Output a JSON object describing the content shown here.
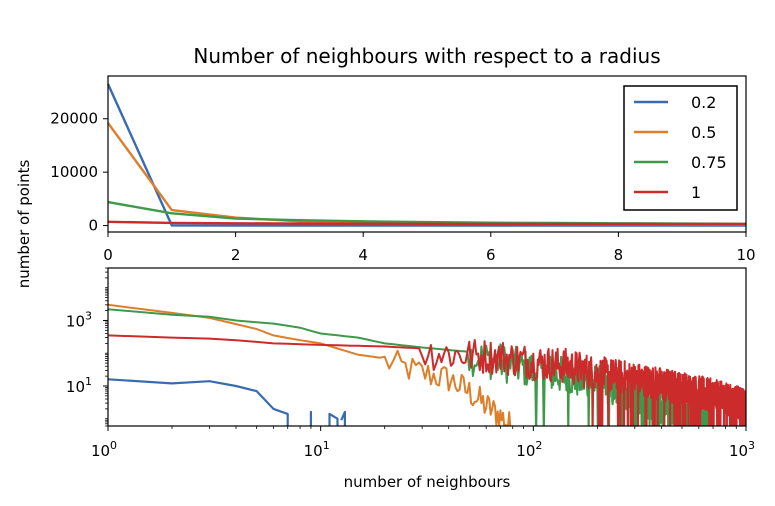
{
  "chart_data": [
    {
      "type": "line",
      "title": "Number of neighbours with respect to a radius",
      "xlabel": "",
      "ylabel": "number of points",
      "xlim": [
        0,
        10
      ],
      "ylim": [
        -1200,
        28000
      ],
      "xticks": [
        0,
        2,
        4,
        6,
        8,
        10
      ],
      "xtick_labels": [
        "0",
        "2",
        "4",
        "6",
        "8",
        "10"
      ],
      "yticks": [
        0,
        10000,
        20000
      ],
      "ytick_labels": [
        "0",
        "10000",
        "20000"
      ],
      "legend_position": "upper right",
      "x": [
        0,
        1,
        2,
        3,
        4,
        5,
        6,
        7,
        8,
        9,
        10
      ],
      "series": [
        {
          "name": "0.2",
          "color": "#3a6bb1",
          "values": [
            26500,
            40,
            15,
            8,
            5,
            4,
            3,
            2,
            2,
            1,
            1
          ]
        },
        {
          "name": "0.5",
          "color": "#dd7e2b",
          "values": [
            19200,
            2900,
            1500,
            800,
            600,
            450,
            350,
            300,
            250,
            220,
            200
          ]
        },
        {
          "name": "0.75",
          "color": "#3e9a4a",
          "values": [
            4400,
            2300,
            1300,
            1000,
            800,
            650,
            550,
            480,
            420,
            380,
            340
          ]
        },
        {
          "name": "1",
          "color": "#cc2b2b",
          "values": [
            700,
            500,
            420,
            380,
            350,
            330,
            320,
            310,
            300,
            295,
            290
          ]
        }
      ]
    },
    {
      "type": "line",
      "title": "",
      "xlabel": "number of neighbours",
      "ylabel": "",
      "xscale": "log",
      "yscale": "log",
      "xlim": [
        1,
        1000
      ],
      "ylim": [
        0.6,
        40000
      ],
      "xticks": [
        1,
        10,
        100,
        1000
      ],
      "xtick_labels": [
        {
          "base": "10",
          "exp": "0"
        },
        {
          "base": "10",
          "exp": "1"
        },
        {
          "base": "10",
          "exp": "2"
        },
        {
          "base": "10",
          "exp": "3"
        }
      ],
      "yticks": [
        10,
        1000
      ],
      "ytick_labels": [
        {
          "base": "10",
          "exp": "1"
        },
        {
          "base": "10",
          "exp": "3"
        }
      ],
      "series": [
        {
          "name": "0.2",
          "color": "#3a6bb1",
          "segments": [
            [
              [
                1,
                16
              ],
              [
                2,
                12
              ],
              [
                3,
                14
              ],
              [
                4,
                10
              ],
              [
                5,
                7
              ],
              [
                6,
                2
              ],
              [
                7,
                1.4
              ],
              [
                7,
                0.6
              ]
            ],
            [
              [
                9,
                0.6
              ],
              [
                9,
                1.6
              ],
              [
                9,
                0.6
              ]
            ],
            [
              [
                11,
                0.6
              ],
              [
                11,
                1.4
              ],
              [
                12,
                1
              ],
              [
                12,
                0.6
              ]
            ],
            [
              [
                13,
                0.6
              ],
              [
                13,
                1.6
              ],
              [
                12.5,
                0.9
              ]
            ]
          ]
        },
        {
          "name": "0.5",
          "color": "#dd7e2b",
          "anchors": [
            [
              1,
              3000
            ],
            [
              2,
              1700
            ],
            [
              3,
              1200
            ],
            [
              5,
              550
            ],
            [
              6,
              350
            ],
            [
              8,
              250
            ],
            [
              10,
              200
            ],
            [
              15,
              90
            ],
            [
              20,
              70
            ],
            [
              30,
              30
            ],
            [
              40,
              20
            ],
            [
              50,
              8
            ],
            [
              60,
              3
            ],
            [
              70,
              1.5
            ],
            [
              80,
              0.6
            ]
          ],
          "noise_start": 20,
          "noise_amp": 0.45,
          "end_x": 80
        },
        {
          "name": "0.75",
          "color": "#3e9a4a",
          "anchors": [
            [
              1,
              2200
            ],
            [
              2,
              1500
            ],
            [
              3,
              1300
            ],
            [
              4,
              1000
            ],
            [
              6,
              800
            ],
            [
              8,
              600
            ],
            [
              10,
              400
            ],
            [
              15,
              300
            ],
            [
              20,
              200
            ],
            [
              30,
              150
            ],
            [
              50,
              110
            ],
            [
              70,
              70
            ],
            [
              100,
              40
            ],
            [
              150,
              25
            ],
            [
              200,
              15
            ],
            [
              300,
              6
            ],
            [
              400,
              3
            ],
            [
              500,
              1.5
            ],
            [
              700,
              0.8
            ]
          ],
          "noise_start": 50,
          "noise_amp": 0.6,
          "end_x": 700
        },
        {
          "name": "1",
          "color": "#cc2b2b",
          "anchors": [
            [
              1,
              350
            ],
            [
              2,
              300
            ],
            [
              3,
              280
            ],
            [
              4,
              250
            ],
            [
              6,
              200
            ],
            [
              10,
              180
            ],
            [
              20,
              160
            ],
            [
              30,
              140
            ],
            [
              50,
              110
            ],
            [
              70,
              100
            ],
            [
              100,
              70
            ],
            [
              150,
              50
            ],
            [
              200,
              30
            ],
            [
              300,
              20
            ],
            [
              500,
              10
            ],
            [
              700,
              6
            ],
            [
              1000,
              3
            ]
          ],
          "noise_start": 30,
          "noise_amp": 0.55,
          "end_x": 1000
        }
      ]
    }
  ]
}
